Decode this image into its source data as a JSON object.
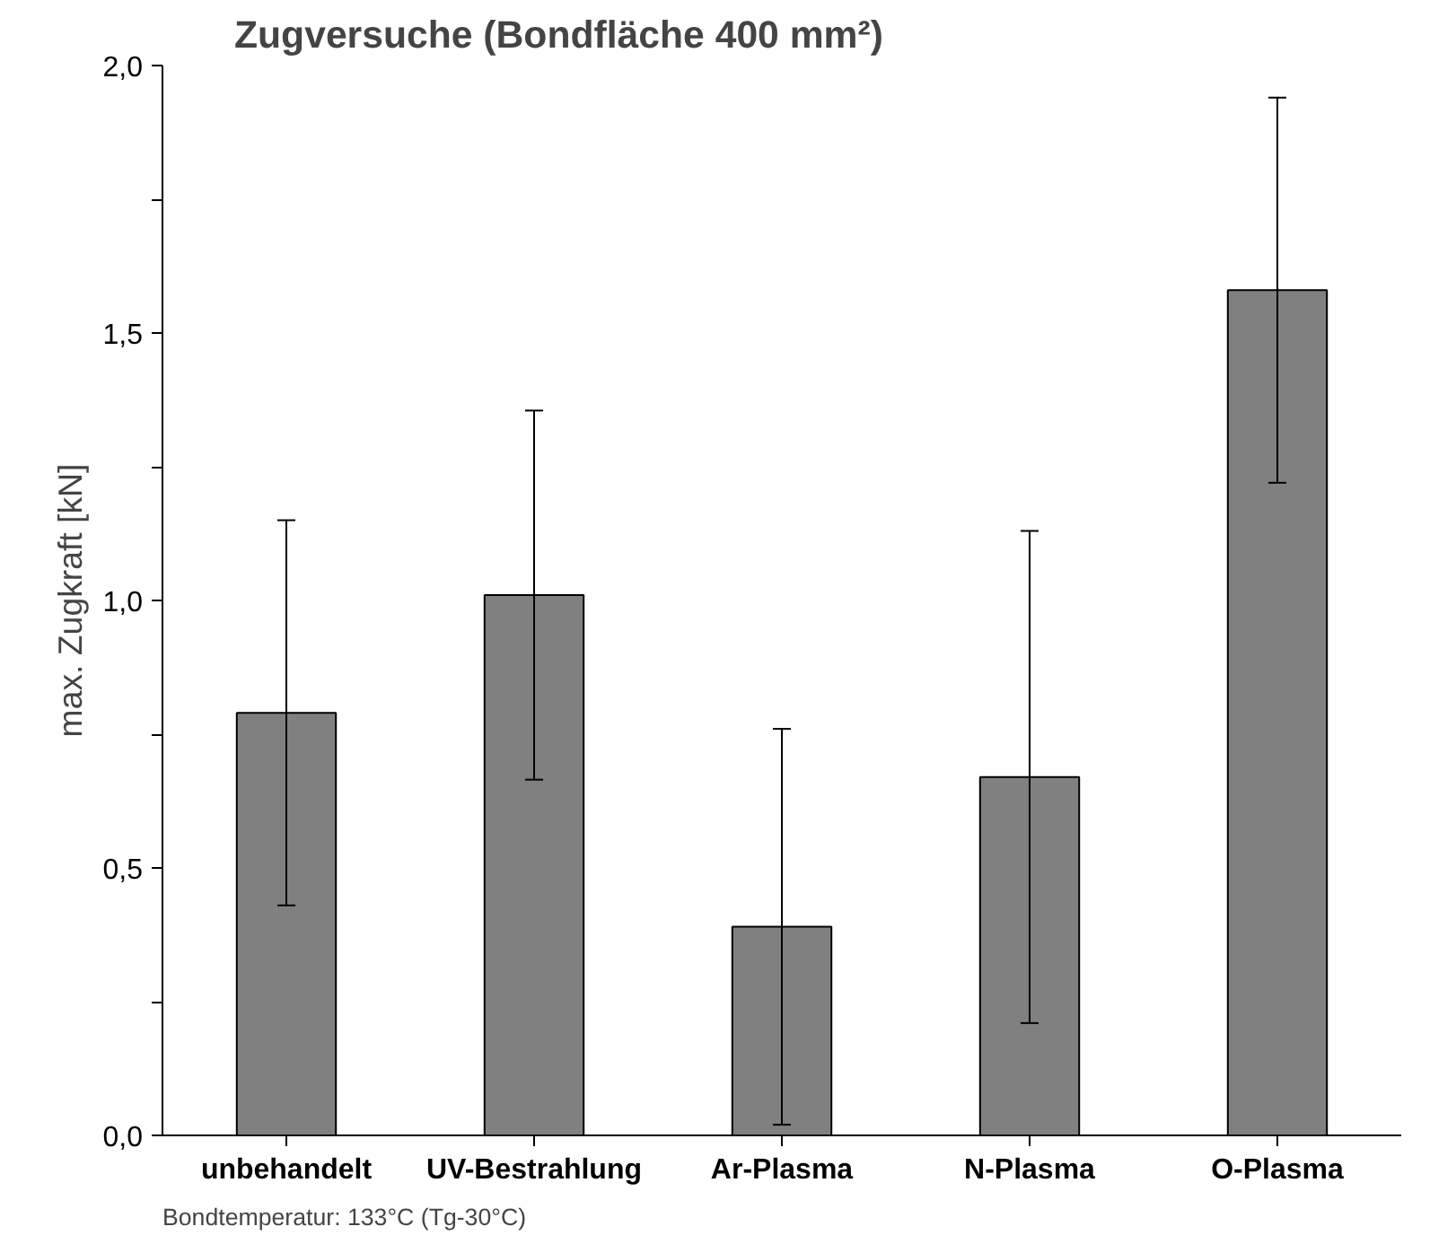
{
  "chart_data": {
    "type": "bar",
    "title": "Zugversuche (Bondfläche 400 mm²)",
    "ylabel": "max. Zugkraft [kN]",
    "categories": [
      "unbehandelt",
      "UV-Bestrahlung",
      "Ar-Plasma",
      "N-Plasma",
      "O-Plasma"
    ],
    "values": [
      0.79,
      1.01,
      0.39,
      0.67,
      1.58
    ],
    "errors": [
      0.36,
      0.345,
      0.37,
      0.46,
      0.36
    ],
    "color": "#808080",
    "ylim": [
      0,
      2.0
    ],
    "yticks": [
      {
        "value": 0,
        "label": "0,0"
      },
      {
        "value": 0.25,
        "label": null
      },
      {
        "value": 0.5,
        "label": "0,5"
      },
      {
        "value": 0.75,
        "label": null
      },
      {
        "value": 1.0,
        "label": "1,0"
      },
      {
        "value": 1.25,
        "label": null
      },
      {
        "value": 1.5,
        "label": "1,5"
      },
      {
        "value": 1.75,
        "label": null
      },
      {
        "value": 2.0,
        "label": "2,0"
      }
    ],
    "grid": false,
    "annotations": [
      "Bondtemperatur: 133°C (Tg-30°C)"
    ]
  }
}
